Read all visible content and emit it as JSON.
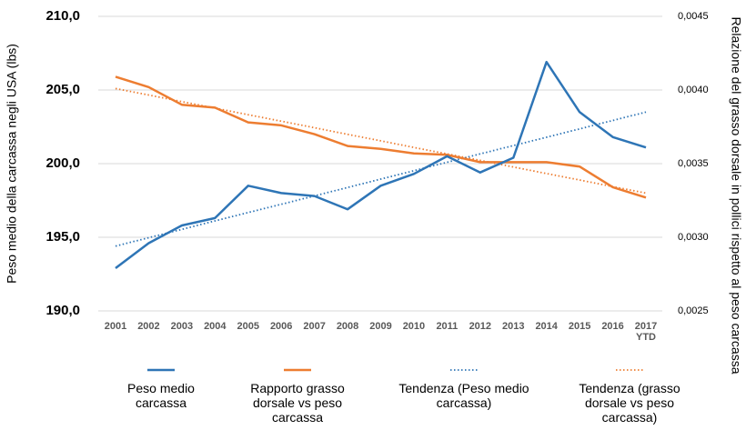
{
  "chart_data": {
    "type": "line",
    "y_label": "Peso medio della carcassa negli USA (lbs)",
    "y2_label": "Relazione del grasso dorsale in pollici rispetto al peso carcassa",
    "categories": [
      "2001",
      "2002",
      "2003",
      "2004",
      "2005",
      "2006",
      "2007",
      "2008",
      "2009",
      "2010",
      "2011",
      "2012",
      "2013",
      "2014",
      "2015",
      "2016",
      "2017 YTD"
    ],
    "ylim": [
      190,
      210
    ],
    "yticks": [
      {
        "value": 190,
        "label": "190,0"
      },
      {
        "value": 195,
        "label": "195,0"
      },
      {
        "value": 200,
        "label": "200,0"
      },
      {
        "value": 205,
        "label": "205,0"
      },
      {
        "value": 210,
        "label": "210,0"
      }
    ],
    "y2lim": [
      0.0025,
      0.0045
    ],
    "y2ticks": [
      {
        "value": 0.0025,
        "label": "0,0025"
      },
      {
        "value": 0.003,
        "label": "0,0030"
      },
      {
        "value": 0.0035,
        "label": "0,0035"
      },
      {
        "value": 0.004,
        "label": "0,0040"
      },
      {
        "value": 0.0045,
        "label": "0,0045"
      }
    ],
    "grid": true,
    "legend": "bottom",
    "series": [
      {
        "name": "Peso medio carcassa",
        "color": "#2e75b6",
        "style": "solid",
        "values": [
          192.9,
          194.6,
          195.8,
          196.3,
          198.5,
          198.0,
          197.8,
          196.9,
          198.5,
          199.3,
          200.5,
          199.4,
          200.4,
          206.9,
          203.5,
          201.8,
          201.1
        ]
      },
      {
        "name": "Rapporto grasso dorsale vs peso carcassa",
        "color": "#ed7d31",
        "style": "solid",
        "axis": "y2",
        "values": [
          0.00409,
          0.00402,
          0.0039,
          0.00388,
          0.00378,
          0.00376,
          0.0037,
          0.00362,
          0.0036,
          0.00357,
          0.00356,
          0.00351,
          0.00351,
          0.00351,
          0.00348,
          0.00334,
          0.00327
        ]
      },
      {
        "name": "Tendenza (Peso medio carcassa)",
        "color": "#2e75b6",
        "style": "dotted",
        "values": [
          194.4,
          194.97,
          195.54,
          196.11,
          196.68,
          197.24,
          197.81,
          198.38,
          198.95,
          199.52,
          200.09,
          200.66,
          201.23,
          201.79,
          202.36,
          202.93,
          203.5
        ]
      },
      {
        "name": "Tendenza (grasso dorsale vs peso carcassa)",
        "color": "#ed7d31",
        "style": "dotted",
        "axis": "y2",
        "values": [
          0.00401,
          0.003966,
          0.003921,
          0.003877,
          0.003832,
          0.003788,
          0.003744,
          0.003699,
          0.003655,
          0.00361,
          0.003566,
          0.003522,
          0.003477,
          0.003433,
          0.003389,
          0.003344,
          0.0033
        ]
      }
    ]
  }
}
